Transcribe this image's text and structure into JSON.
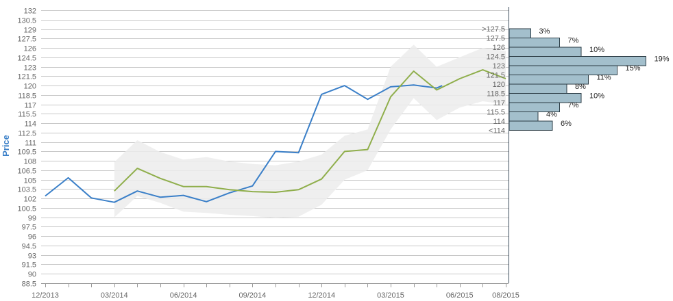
{
  "colors": {
    "actual": "#3a7fc8",
    "forecast": "#8fae4b",
    "band": "#ececec",
    "hist_fill": "#a3bfcc",
    "hist_stroke": "#2b3b44",
    "grid": "#c7c7c7",
    "axis_text": "#666666",
    "ylabel": "#3a7fc8"
  },
  "chart_data": [
    {
      "type": "line",
      "ylabel": "Price",
      "ylim": [
        88.5,
        132
      ],
      "y_ticks": [
        "88.5",
        "90",
        "91.5",
        "93",
        "94.5",
        "96",
        "97.5",
        "99",
        "100.5",
        "102",
        "103.5",
        "105",
        "106.5",
        "108",
        "109.5",
        "111",
        "112.5",
        "114",
        "115.5",
        "117",
        "118.5",
        "120",
        "121.5",
        "123",
        "124.5",
        "126",
        "127.5",
        "129",
        "130.5",
        "132"
      ],
      "x_tick_labels": [
        "12/2013",
        "03/2014",
        "06/2014",
        "09/2014",
        "12/2014",
        "03/2015",
        "06/2015",
        "08/2015"
      ],
      "grid": true,
      "series": [
        {
          "key": "actual",
          "x": [
            "12/2013",
            "01/2014",
            "02/2014",
            "03/2014",
            "04/2014",
            "05/2014",
            "06/2014",
            "07/2014",
            "08/2014",
            "09/2014",
            "10/2014",
            "11/2014",
            "12/2014",
            "01/2015",
            "02/2015",
            "03/2015",
            "04/2015",
            "05/2015",
            "05/2015"
          ],
          "values": [
            102.4,
            105.3,
            102.1,
            101.4,
            103.2,
            102.2,
            102.5,
            101.5,
            102.9,
            104.0,
            109.5,
            109.3,
            118.6,
            120.0,
            117.8,
            119.8,
            120.1,
            119.6,
            120.0
          ]
        },
        {
          "key": "forecast",
          "x": [
            "03/2014",
            "04/2014",
            "05/2014",
            "06/2014",
            "07/2014",
            "08/2014",
            "09/2014",
            "10/2014",
            "11/2014",
            "12/2014",
            "01/2015",
            "02/2015",
            "03/2015",
            "04/2015",
            "05/2015",
            "06/2015",
            "07/2015",
            "08/2015"
          ],
          "values": [
            103.2,
            106.8,
            105.2,
            103.9,
            103.9,
            103.4,
            103.1,
            103.0,
            103.4,
            105.1,
            109.5,
            109.8,
            118.2,
            122.3,
            119.3,
            121.1,
            122.5,
            121.1
          ]
        }
      ],
      "band": {
        "x": [
          "03/2014",
          "04/2014",
          "05/2014",
          "06/2014",
          "07/2014",
          "08/2014",
          "09/2014",
          "10/2014",
          "11/2014",
          "12/2014",
          "01/2015",
          "02/2015",
          "03/2015",
          "04/2015",
          "05/2015",
          "06/2015",
          "07/2015",
          "08/2015"
        ],
        "upper": [
          107.8,
          111.3,
          109.4,
          108.2,
          108.6,
          107.9,
          107.5,
          107.3,
          107.9,
          109.0,
          112.0,
          113.0,
          123.0,
          126.5,
          123.0,
          124.5,
          126.0,
          125.5
        ],
        "lower": [
          99.0,
          102.4,
          101.3,
          99.9,
          99.7,
          99.4,
          99.2,
          98.9,
          99.1,
          101.0,
          105.0,
          106.5,
          113.0,
          118.0,
          114.5,
          116.5,
          117.5,
          117.0
        ]
      }
    },
    {
      "type": "bar",
      "orientation": "horizontal",
      "categories": [
        ">127.5",
        "127.5",
        "126",
        "124.5",
        "123",
        "121.5",
        "120",
        "118.5",
        "117",
        "115.5",
        "114",
        "<114"
      ],
      "values": [
        3,
        7,
        10,
        19,
        15,
        11,
        8,
        10,
        7,
        4,
        6,
        0
      ],
      "value_labels": [
        "3%",
        "7%",
        "10%",
        "19%",
        "15%",
        "11%",
        "8%",
        "10%",
        "7%",
        "4%",
        "6%",
        ""
      ]
    }
  ]
}
